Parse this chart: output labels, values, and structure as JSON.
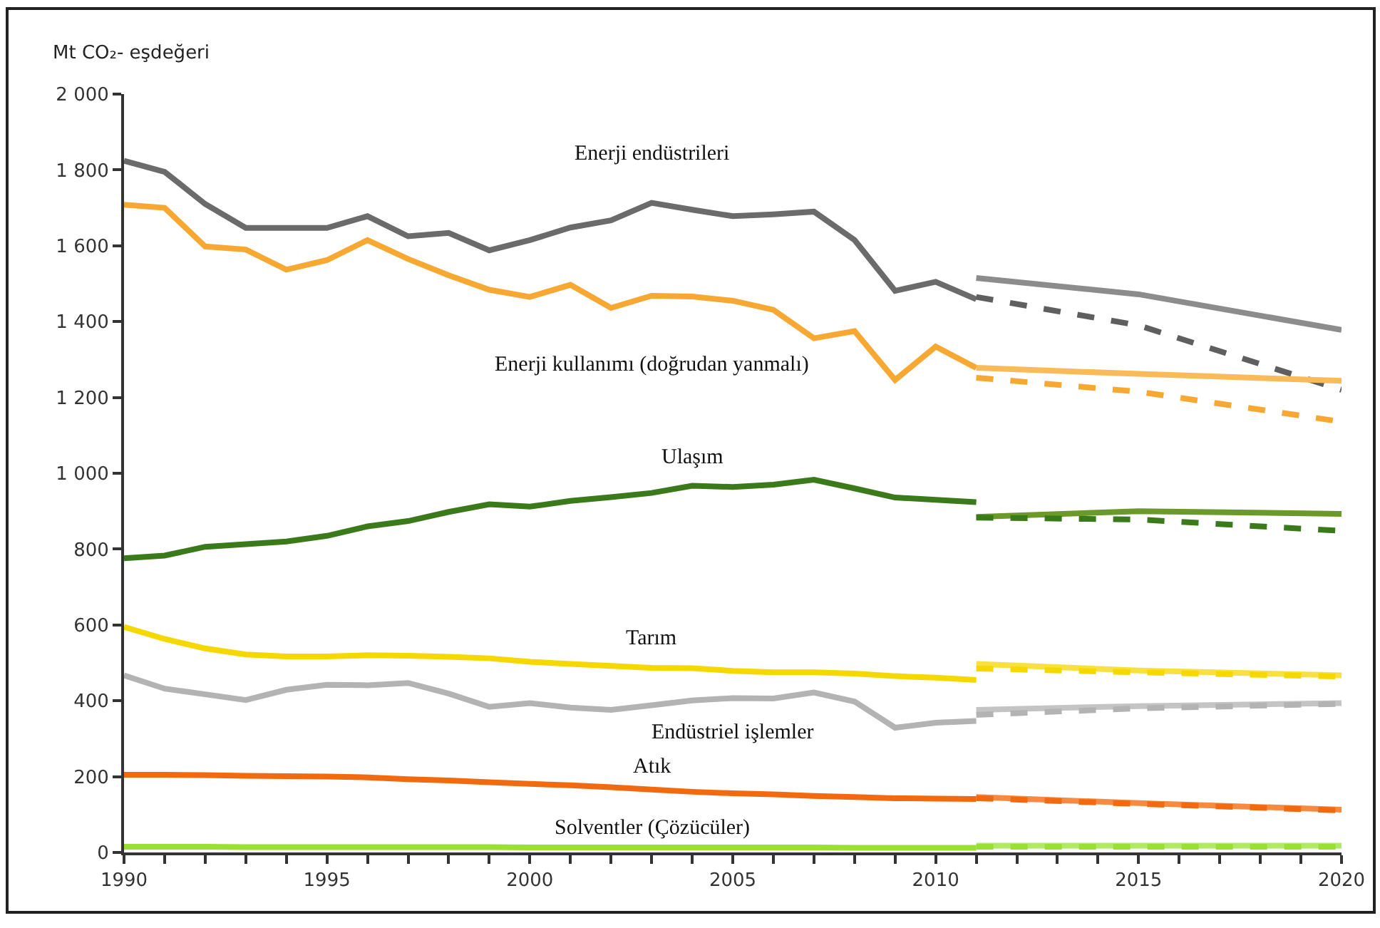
{
  "chart_data": {
    "type": "line",
    "ylabel": "Mt CO₂- eşdeğeri",
    "legend": false,
    "grid": false,
    "marker": "none",
    "xlim": [
      1990,
      2020
    ],
    "xticks": [
      1990,
      {
        "value": 1991,
        "label": null
      },
      {
        "value": 1992,
        "label": null
      },
      {
        "value": 1993,
        "label": null
      },
      {
        "value": 1994,
        "label": null
      },
      1995,
      {
        "value": 1996,
        "label": null
      },
      {
        "value": 1997,
        "label": null
      },
      {
        "value": 1998,
        "label": null
      },
      {
        "value": 1999,
        "label": null
      },
      2000,
      {
        "value": 2001,
        "label": null
      },
      {
        "value": 2002,
        "label": null
      },
      {
        "value": 2003,
        "label": null
      },
      {
        "value": 2004,
        "label": null
      },
      2005,
      {
        "value": 2006,
        "label": null
      },
      {
        "value": 2007,
        "label": null
      },
      {
        "value": 2008,
        "label": null
      },
      {
        "value": 2009,
        "label": null
      },
      2010,
      {
        "value": 2011,
        "label": null
      },
      {
        "value": 2012,
        "label": null
      },
      {
        "value": 2013,
        "label": null
      },
      {
        "value": 2014,
        "label": null
      },
      2015,
      {
        "value": 2016,
        "label": null
      },
      {
        "value": 2017,
        "label": null
      },
      {
        "value": 2018,
        "label": null
      },
      {
        "value": 2019,
        "label": null
      },
      2020
    ],
    "ylim": [
      0,
      2000
    ],
    "yticks": [
      0,
      200,
      400,
      600,
      800,
      {
        "value": 1000,
        "label": "1 000"
      },
      {
        "value": 1200,
        "label": "1 200"
      },
      {
        "value": 1400,
        "label": "1 400"
      },
      {
        "value": 1600,
        "label": "1 600"
      },
      {
        "value": 1800,
        "label": "1 800"
      },
      {
        "value": 2000,
        "label": "2 000"
      }
    ],
    "x": [
      1990,
      1991,
      1992,
      1993,
      1994,
      1995,
      1996,
      1997,
      1998,
      1999,
      2000,
      2001,
      2002,
      2003,
      2004,
      2005,
      2006,
      2007,
      2008,
      2009,
      2010,
      2011
    ],
    "series": [
      {
        "name": "Enerji endüstrileri",
        "color": "#6b6b6b",
        "values": [
          1824,
          1795,
          1710,
          1647,
          1647,
          1647,
          1678,
          1625,
          1634,
          1588,
          1615,
          1648,
          1667,
          1713,
          1695,
          1678,
          1683,
          1690,
          1615,
          1481,
          1505,
          1459
        ]
      },
      {
        "name": "Enerji kullanımı (doğrudan yanmalı)",
        "color": "#f7a832",
        "values": [
          1708,
          1700,
          1598,
          1590,
          1537,
          1562,
          1615,
          1565,
          1522,
          1484,
          1465,
          1497,
          1436,
          1468,
          1466,
          1455,
          1431,
          1356,
          1375,
          1246,
          1334,
          1278
        ]
      },
      {
        "name": "Ulaşım",
        "color": "#3a7a1a",
        "values": [
          776,
          783,
          806,
          813,
          820,
          835,
          860,
          874,
          898,
          918,
          912,
          927,
          937,
          948,
          967,
          964,
          970,
          983,
          960,
          936,
          930,
          924
        ]
      },
      {
        "name": "Tarım",
        "color": "#f5d800",
        "values": [
          595,
          563,
          538,
          522,
          517,
          517,
          520,
          519,
          516,
          512,
          503,
          497,
          492,
          487,
          486,
          479,
          475,
          475,
          472,
          465,
          461,
          455
        ]
      },
      {
        "name": "Endüstriel işlemler",
        "color": "#b3b3b3",
        "values": [
          467,
          432,
          417,
          402,
          429,
          442,
          441,
          447,
          419,
          384,
          394,
          382,
          376,
          388,
          401,
          407,
          406,
          422,
          398,
          329,
          342,
          347
        ]
      },
      {
        "name": "Atık",
        "color": "#f26a10",
        "values": [
          205,
          205,
          204,
          202,
          201,
          200,
          198,
          193,
          190,
          185,
          181,
          177,
          172,
          166,
          160,
          156,
          153,
          149,
          146,
          143,
          142,
          141
        ]
      },
      {
        "name": "Solventler (Çözücüler)",
        "color": "#99e033",
        "values": [
          15,
          15,
          15,
          14,
          14,
          14,
          14,
          14,
          14,
          14,
          13,
          13,
          13,
          13,
          13,
          13,
          13,
          13,
          12,
          12,
          12,
          12
        ]
      },
      {
        "color": "#8c8c8c",
        "x": [
          2011,
          2015,
          2020
        ],
        "values": [
          1515,
          1472,
          1378
        ]
      },
      {
        "color": "#5f5f5f",
        "line_style": "dashed",
        "x": [
          2011,
          2015,
          2020
        ],
        "values": [
          1465,
          1390,
          1220
        ]
      },
      {
        "color": "#f9bb5a",
        "x": [
          2011,
          2015,
          2020
        ],
        "values": [
          1278,
          1262,
          1244
        ]
      },
      {
        "color": "#f7a832",
        "line_style": "dashed",
        "x": [
          2011,
          2015,
          2020
        ],
        "values": [
          1252,
          1215,
          1136
        ]
      },
      {
        "color": "#6b9a2a",
        "x": [
          2011,
          2015,
          2020
        ],
        "values": [
          885,
          900,
          893
        ]
      },
      {
        "color": "#3a7a1a",
        "line_style": "dashed",
        "x": [
          2011,
          2015,
          2020
        ],
        "values": [
          883,
          878,
          848
        ]
      },
      {
        "color": "#f8e040",
        "x": [
          2011,
          2015,
          2020
        ],
        "values": [
          497,
          480,
          467
        ]
      },
      {
        "color": "#f5d800",
        "line_style": "dashed",
        "x": [
          2011,
          2015,
          2020
        ],
        "values": [
          485,
          475,
          464
        ]
      },
      {
        "color": "#c4c4c4",
        "x": [
          2011,
          2015,
          2020
        ],
        "values": [
          376,
          386,
          394
        ]
      },
      {
        "color": "#b3b3b3",
        "line_style": "dashed",
        "x": [
          2011,
          2015,
          2020
        ],
        "values": [
          363,
          380,
          392
        ]
      },
      {
        "color": "#f58a40",
        "x": [
          2011,
          2015,
          2020
        ],
        "values": [
          146,
          130,
          113
        ]
      },
      {
        "color": "#f26a10",
        "line_style": "dashed",
        "x": [
          2011,
          2015,
          2020
        ],
        "values": [
          143,
          128,
          111
        ]
      },
      {
        "color": "#b0ea60",
        "x": [
          2011,
          2015,
          2020
        ],
        "values": [
          18,
          18,
          18
        ]
      },
      {
        "color": "#99e033",
        "line_style": "dashed",
        "x": [
          2011,
          2015,
          2020
        ],
        "values": [
          15,
          15,
          15
        ]
      }
    ]
  }
}
